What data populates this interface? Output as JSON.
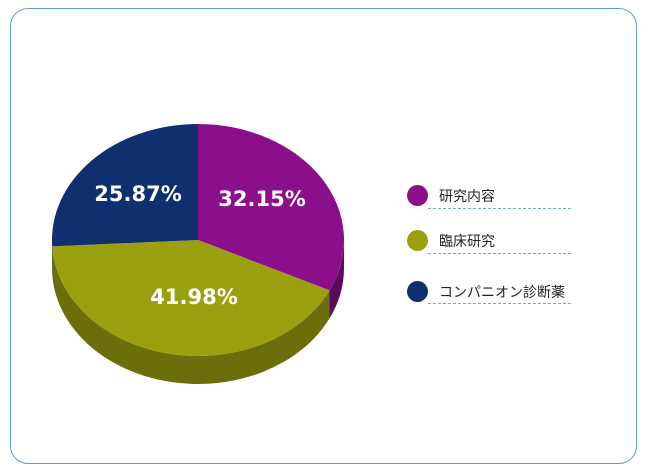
{
  "chart_data": {
    "type": "pie",
    "title": "",
    "legend_position": "right",
    "slices": [
      {
        "label": "研究内容",
        "value": 32.15,
        "value_label": "32.15%",
        "color": "#8b0f8b",
        "side_color": "#5c0a5c"
      },
      {
        "label": "臨床研究",
        "value": 41.98,
        "value_label": "41.98%",
        "color": "#9aa010",
        "side_color": "#6b6f0a"
      },
      {
        "label": "コンパニオン診断薬",
        "value": 25.87,
        "value_label": "25.87%",
        "color": "#0f2f6e",
        "side_color": "#0a1f4a"
      }
    ]
  },
  "colors": {
    "frame_border": "#5d9fd0",
    "legend_dash": "#6aa8dd",
    "value_label": "#ffffff"
  }
}
